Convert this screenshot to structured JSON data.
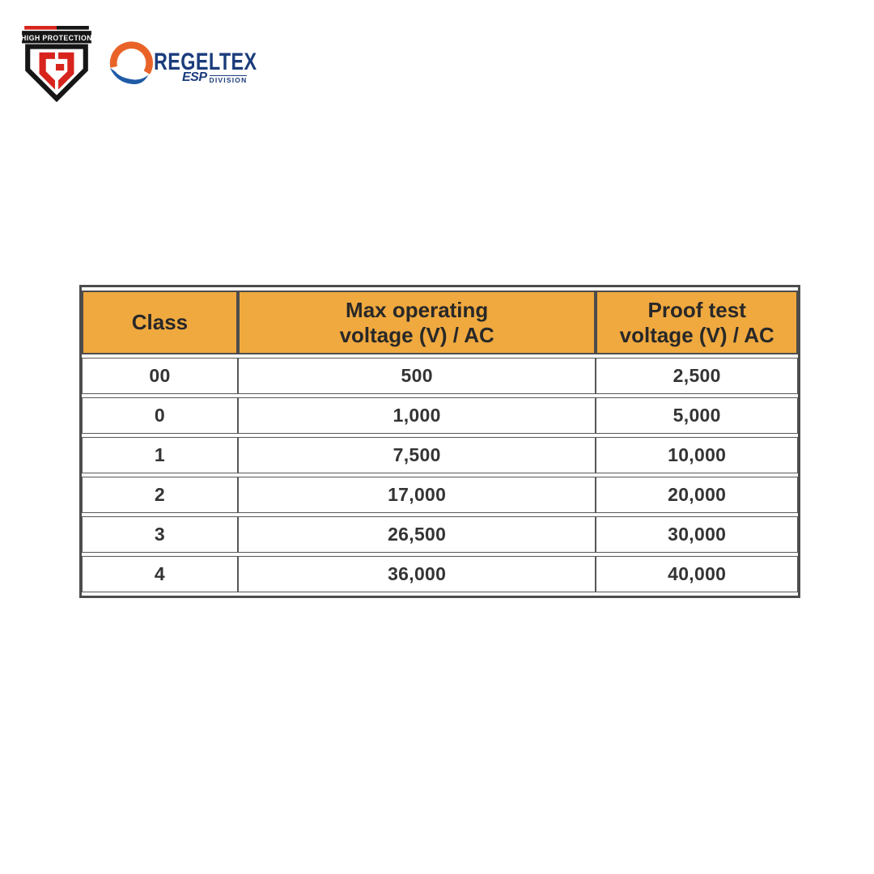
{
  "logos": {
    "high_protection": {
      "banner": "HIGH PROTECTION",
      "colors": {
        "red": "#d7251d",
        "black": "#161616",
        "text": "#ffffff"
      }
    },
    "regeltex": {
      "name": "REGELTEX",
      "esp": "ESP",
      "division": "DIVISION",
      "colors": {
        "navy": "#1b3c7c",
        "orange": "#e96328",
        "blue": "#1f5ba6"
      }
    }
  },
  "table": {
    "header_bg": "#f0a93f",
    "border_color": "#4c4c4c",
    "header_text_color": "#282828",
    "body_text_color": "#343434",
    "header_lines": [
      [
        "Class"
      ],
      [
        "Max operating",
        "voltage (V) / AC"
      ],
      [
        "Proof test",
        "voltage (V) / AC"
      ]
    ],
    "columns": [
      "Class",
      "Max operating voltage (V) / AC",
      "Proof test voltage (V) / AC"
    ],
    "rows": [
      [
        "00",
        "500",
        "2,500"
      ],
      [
        "0",
        "1,000",
        "5,000"
      ],
      [
        "1",
        "7,500",
        "10,000"
      ],
      [
        "2",
        "17,000",
        "20,000"
      ],
      [
        "3",
        "26,500",
        "30,000"
      ],
      [
        "4",
        "36,000",
        "40,000"
      ]
    ]
  }
}
